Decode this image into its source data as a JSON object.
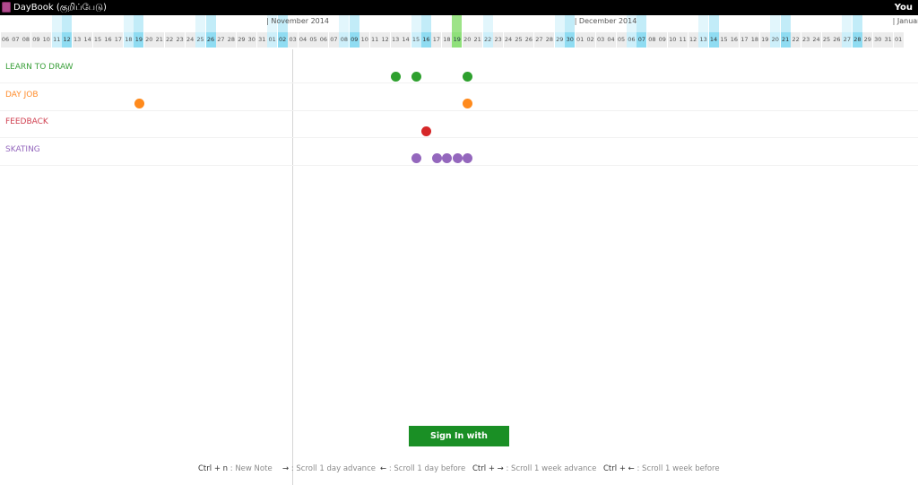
{
  "app": {
    "title": "DayBook (குறிப்பேடு)",
    "user": "You",
    "icon": "notebook-icon"
  },
  "timeline": {
    "months": [
      {
        "label": "| November 2014",
        "start_index": 26
      },
      {
        "label": "| December 2014",
        "start_index": 56
      },
      {
        "label": "| January",
        "start_index": 87
      }
    ],
    "days": [
      "06",
      "07",
      "08",
      "09",
      "10",
      "11",
      "12",
      "13",
      "14",
      "15",
      "16",
      "17",
      "18",
      "19",
      "20",
      "21",
      "22",
      "23",
      "24",
      "25",
      "26",
      "27",
      "28",
      "29",
      "30",
      "31",
      "01",
      "02",
      "03",
      "04",
      "05",
      "06",
      "07",
      "08",
      "09",
      "10",
      "11",
      "12",
      "13",
      "14",
      "15",
      "16",
      "17",
      "18",
      "19",
      "20",
      "21",
      "22",
      "23",
      "24",
      "25",
      "26",
      "27",
      "28",
      "29",
      "30",
      "01",
      "02",
      "03",
      "04",
      "05",
      "06",
      "07",
      "08",
      "09",
      "10",
      "11",
      "12",
      "13",
      "14",
      "15",
      "16",
      "17",
      "18",
      "19",
      "20",
      "21",
      "22",
      "23",
      "24",
      "25",
      "26",
      "27",
      "28",
      "29",
      "30",
      "31",
      "01"
    ],
    "weekend_light_indices": [
      5,
      12,
      19,
      26,
      33,
      40,
      47,
      54,
      61,
      68,
      75,
      82,
      89
    ],
    "weekend_dark_indices": [
      6,
      13,
      20,
      27,
      34,
      41,
      55,
      62,
      69,
      76,
      83,
      90
    ],
    "today_index": 44
  },
  "categories": [
    {
      "label": "LEARN TO DRAW",
      "color": "#3aa03a",
      "dot_color": "#2ea02e",
      "entries": [
        38,
        40,
        45
      ]
    },
    {
      "label": "DAY JOB",
      "color": "#ff8c2b",
      "dot_color": "#ff8a1c",
      "entries": [
        13,
        45
      ]
    },
    {
      "label": "FEEDBACK",
      "color": "#d04050",
      "dot_color": "#d62728",
      "entries": [
        41
      ]
    },
    {
      "label": "SKATING",
      "color": "#9467bd",
      "dot_color": "#9467bd",
      "entries": [
        40,
        42,
        43,
        44,
        45
      ]
    }
  ],
  "signin": {
    "label": "Sign In with Dropbox",
    "color": "#1a8f25"
  },
  "shortcuts": [
    {
      "key": "Ctrl + n",
      "desc": " : New Note"
    },
    {
      "key": "→",
      "desc": " : Scroll 1 day advance"
    },
    {
      "key": "←",
      "desc": " : Scroll 1 day before"
    },
    {
      "key": "Ctrl + →",
      "desc": " : Scroll 1 week advance"
    },
    {
      "key": "Ctrl + ←",
      "desc": " : Scroll 1 week before"
    }
  ]
}
